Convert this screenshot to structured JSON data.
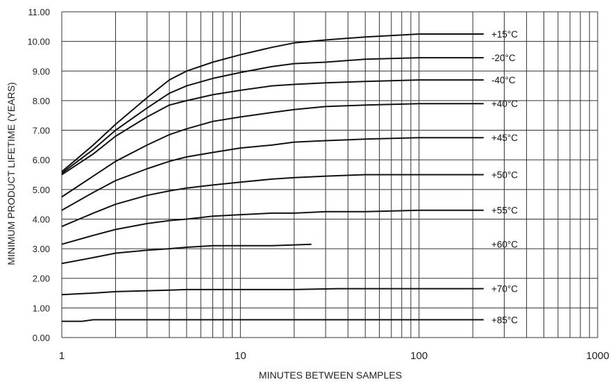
{
  "chart_data": {
    "type": "line",
    "title": "",
    "xlabel": "MINUTES BETWEEN SAMPLES",
    "ylabel": "MINIMUM PRODUCT LIFETIME (YEARS)",
    "xscale": "log",
    "xlim": [
      1,
      1000
    ],
    "ylim": [
      0,
      11
    ],
    "x_tick_labels": [
      "1",
      "10",
      "100",
      "1000"
    ],
    "y_tick_labels": [
      "0.00",
      "1.00",
      "2.00",
      "3.00",
      "4.00",
      "5.00",
      "6.00",
      "7.00",
      "8.00",
      "9.00",
      "10.00",
      "11.00"
    ],
    "grid": true,
    "series": [
      {
        "name": "+15°C",
        "x": [
          1,
          1.5,
          2,
          3,
          4,
          5,
          7,
          10,
          15,
          20,
          30,
          50,
          100,
          230
        ],
        "y": [
          5.6,
          6.5,
          7.2,
          8.1,
          8.7,
          9.0,
          9.3,
          9.55,
          9.8,
          9.95,
          10.05,
          10.15,
          10.25,
          10.25
        ]
      },
      {
        "name": "-20°C",
        "x": [
          1,
          1.5,
          2,
          3,
          4,
          5,
          7,
          10,
          15,
          20,
          30,
          50,
          100,
          230
        ],
        "y": [
          5.55,
          6.35,
          7.0,
          7.75,
          8.25,
          8.5,
          8.75,
          8.95,
          9.15,
          9.25,
          9.3,
          9.4,
          9.45,
          9.45
        ]
      },
      {
        "name": "-40°C",
        "x": [
          1,
          1.5,
          2,
          3,
          4,
          5,
          7,
          10,
          15,
          20,
          30,
          50,
          100,
          230
        ],
        "y": [
          5.5,
          6.2,
          6.8,
          7.45,
          7.85,
          8.0,
          8.2,
          8.35,
          8.5,
          8.55,
          8.6,
          8.65,
          8.7,
          8.7
        ]
      },
      {
        "name": "+40°C",
        "x": [
          1,
          1.5,
          2,
          3,
          4,
          5,
          7,
          10,
          15,
          20,
          30,
          50,
          100,
          230
        ],
        "y": [
          4.75,
          5.45,
          5.95,
          6.5,
          6.85,
          7.05,
          7.3,
          7.45,
          7.6,
          7.7,
          7.8,
          7.85,
          7.9,
          7.9
        ]
      },
      {
        "name": "+45°C",
        "x": [
          1,
          1.5,
          2,
          3,
          4,
          5,
          7,
          10,
          15,
          20,
          30,
          50,
          100,
          230
        ],
        "y": [
          4.3,
          4.9,
          5.3,
          5.7,
          5.95,
          6.1,
          6.25,
          6.4,
          6.5,
          6.6,
          6.65,
          6.7,
          6.75,
          6.75
        ]
      },
      {
        "name": "+50°C",
        "x": [
          1,
          1.5,
          2,
          3,
          4,
          5,
          7,
          10,
          15,
          20,
          30,
          50,
          100,
          230
        ],
        "y": [
          3.75,
          4.2,
          4.5,
          4.8,
          4.95,
          5.05,
          5.15,
          5.25,
          5.35,
          5.4,
          5.45,
          5.5,
          5.5,
          5.5
        ]
      },
      {
        "name": "+55°C",
        "x": [
          1,
          1.5,
          2,
          3,
          4,
          5,
          7,
          10,
          15,
          20,
          30,
          50,
          100,
          230
        ],
        "y": [
          3.15,
          3.45,
          3.65,
          3.85,
          3.95,
          4.0,
          4.1,
          4.15,
          4.2,
          4.2,
          4.25,
          4.25,
          4.3,
          4.3
        ]
      },
      {
        "name": "+60°C",
        "x": [
          1,
          1.5,
          2,
          3,
          4,
          5,
          7,
          10,
          15,
          25
        ],
        "y": [
          2.5,
          2.7,
          2.85,
          2.95,
          3.0,
          3.05,
          3.1,
          3.1,
          3.1,
          3.15
        ]
      },
      {
        "name": "+70°C",
        "x": [
          1,
          1.5,
          2,
          3,
          4,
          5,
          10,
          20,
          35,
          50,
          100,
          230
        ],
        "y": [
          1.45,
          1.5,
          1.55,
          1.58,
          1.6,
          1.62,
          1.62,
          1.62,
          1.65,
          1.65,
          1.65,
          1.65
        ]
      },
      {
        "name": "+85°C",
        "x": [
          1,
          1.3,
          1.5,
          10,
          230
        ],
        "y": [
          0.55,
          0.55,
          0.6,
          0.6,
          0.6
        ]
      }
    ]
  }
}
